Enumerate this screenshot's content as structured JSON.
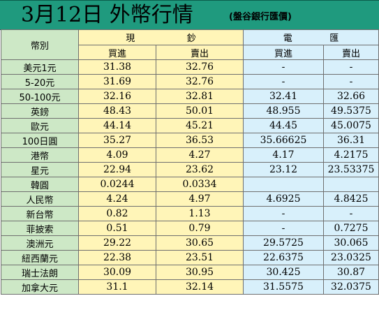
{
  "header": {
    "title": "3月12日 外幣行情",
    "subtitle": "(盤谷銀行匯價)"
  },
  "table": {
    "col_label": "幣別",
    "cash_group": [
      "現",
      "鈔"
    ],
    "tt_group": [
      "電",
      "匯"
    ],
    "buy": "買進",
    "sell": "賣出",
    "rows": [
      {
        "currency": "美元1元",
        "cash_buy": "31.38",
        "cash_sell": "32.76",
        "tt_buy": "-",
        "tt_sell": "-"
      },
      {
        "currency": "5-20元",
        "cash_buy": "31.69",
        "cash_sell": "32.76",
        "tt_buy": "-",
        "tt_sell": "-"
      },
      {
        "currency": "50-100元",
        "cash_buy": "32.16",
        "cash_sell": "32.81",
        "tt_buy": "32.41",
        "tt_sell": "32.66"
      },
      {
        "currency": "英鎊",
        "cash_buy": "48.43",
        "cash_sell": "50.01",
        "tt_buy": "48.955",
        "tt_sell": "49.5375"
      },
      {
        "currency": "歐元",
        "cash_buy": "44.14",
        "cash_sell": "45.21",
        "tt_buy": "44.45",
        "tt_sell": "45.0075"
      },
      {
        "currency": "100日圓",
        "cash_buy": "35.27",
        "cash_sell": "36.53",
        "tt_buy": "35.66625",
        "tt_sell": "36.31"
      },
      {
        "currency": "港幣",
        "cash_buy": "4.09",
        "cash_sell": "4.27",
        "tt_buy": "4.17",
        "tt_sell": "4.2175"
      },
      {
        "currency": "星元",
        "cash_buy": "22.94",
        "cash_sell": "23.62",
        "tt_buy": "23.12",
        "tt_sell": "23.53375"
      },
      {
        "currency": "韓圓",
        "cash_buy": "0.0244",
        "cash_sell": "0.0334",
        "tt_buy": "",
        "tt_sell": ""
      },
      {
        "currency": "人民幣",
        "cash_buy": "4.24",
        "cash_sell": "4.97",
        "tt_buy": "4.6925",
        "tt_sell": "4.8425"
      },
      {
        "currency": "新台幣",
        "cash_buy": "0.82",
        "cash_sell": "1.13",
        "tt_buy": "-",
        "tt_sell": "-"
      },
      {
        "currency": "菲披索",
        "cash_buy": "0.51",
        "cash_sell": "0.79",
        "tt_buy": "-",
        "tt_sell": "0.7275"
      },
      {
        "currency": "澳洲元",
        "cash_buy": "29.22",
        "cash_sell": "30.65",
        "tt_buy": "29.5725",
        "tt_sell": "30.065"
      },
      {
        "currency": "紐西蘭元",
        "cash_buy": "22.38",
        "cash_sell": "23.51",
        "tt_buy": "22.6375",
        "tt_sell": "23.0325"
      },
      {
        "currency": "瑞士法朗",
        "cash_buy": "30.09",
        "cash_sell": "30.95",
        "tt_buy": "30.425",
        "tt_sell": "30.87"
      },
      {
        "currency": "加拿大元",
        "cash_buy": "31.1",
        "cash_sell": "32.14",
        "tt_buy": "31.5575",
        "tt_sell": "32.0375"
      }
    ]
  },
  "colors": {
    "header_bg": "#1f9a7e",
    "label_col_bg": "#cde8c6",
    "cash_col_bg": "#fff5b8",
    "tt_col_bg": "#d8f0fb",
    "grid_line": "#6f6f6f"
  }
}
